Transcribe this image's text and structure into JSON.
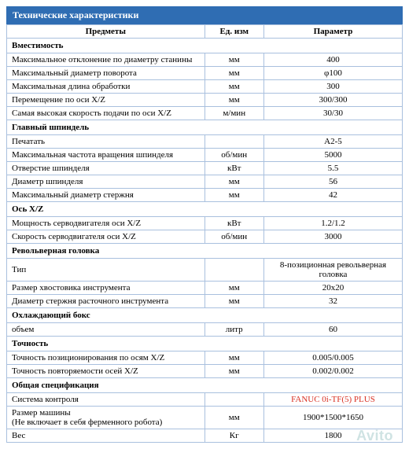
{
  "title": "Технические характеристики",
  "headers": {
    "col1": "Предметы",
    "col2": "Ед. изм",
    "col3": "Параметр"
  },
  "colors": {
    "header_bg": "#2f6db3",
    "header_text": "#ffffff",
    "border_color": "#a9c0de",
    "highlight_text": "#d93022",
    "watermark_color": "#cfe3e3"
  },
  "typography": {
    "body_fontsize": 11,
    "title_fontsize": 12,
    "watermark_fontsize": 18,
    "font_family": "Times New Roman"
  },
  "layout": {
    "col_widths_pct": [
      50,
      15,
      35
    ]
  },
  "watermark": "Avito",
  "sections": [
    {
      "title": "Вместимость",
      "rows": [
        {
          "label": "Максимальное отклонение по диаметру станины",
          "unit": "мм",
          "param": "400"
        },
        {
          "label": "Максимальный диаметр поворота",
          "unit": "мм",
          "param": "φ100"
        },
        {
          "label": "Максимальная длина обработки",
          "unit": "мм",
          "param": "300"
        },
        {
          "label": "Перемещение по оси X/Z",
          "unit": "мм",
          "param": "300/300"
        },
        {
          "label": "Самая высокая скорость подачи по оси X/Z",
          "unit": "м/мин",
          "param": "30/30"
        }
      ]
    },
    {
      "title": "Главный шпиндель",
      "rows": [
        {
          "label": "Печатать",
          "unit": "",
          "param": "A2-5"
        },
        {
          "label": "Максимальная частота вращения шпинделя",
          "unit": "об/мин",
          "param": "5000"
        },
        {
          "label": "Отверстие шпинделя",
          "unit": "кВт",
          "param": "5.5"
        },
        {
          "label": "Диаметр шпинделя",
          "unit": "мм",
          "param": "56"
        },
        {
          "label": "Максимальный диаметр стержня",
          "unit": "мм",
          "param": "42"
        }
      ]
    },
    {
      "title": "Ось X/Z",
      "rows": [
        {
          "label": "Мощность серводвигателя оси X/Z",
          "unit": "кВт",
          "param": "1.2/1.2"
        },
        {
          "label": "Скорость серводвигателя оси X/Z",
          "unit": "об/мин",
          "param": "3000"
        }
      ]
    },
    {
      "title": "Револьверная головка",
      "rows": [
        {
          "label": "Тип",
          "unit": "",
          "param": "8-позиционная револьверная головка"
        },
        {
          "label": "Размер хвостовика инструмента",
          "unit": "мм",
          "param": "20x20"
        },
        {
          "label": "Диаметр стержня расточного инструмента",
          "unit": "мм",
          "param": "32"
        }
      ]
    },
    {
      "title": "Охлаждающий бокс",
      "rows": [
        {
          "label": "объем",
          "unit": "литр",
          "param": "60"
        }
      ]
    },
    {
      "title": "Точность",
      "rows": [
        {
          "label": "Точность позиционирования по осям X/Z",
          "unit": "мм",
          "param": "0.005/0.005"
        },
        {
          "label": "Точность повторяемости осей X/Z",
          "unit": "мм",
          "param": "0.002/0.002"
        }
      ]
    },
    {
      "title": "Общая спецификация",
      "rows": [
        {
          "label": "Система контроля",
          "unit": "",
          "param": "FANUC 0i-TF(5) PLUS",
          "highlight": true
        },
        {
          "label": "Размер машины\n(Не включает в себя ферменного робота)",
          "unit": "мм",
          "param": "1900*1500*1650"
        },
        {
          "label": "Вес",
          "unit": "Кг",
          "param": "1800"
        }
      ]
    }
  ]
}
